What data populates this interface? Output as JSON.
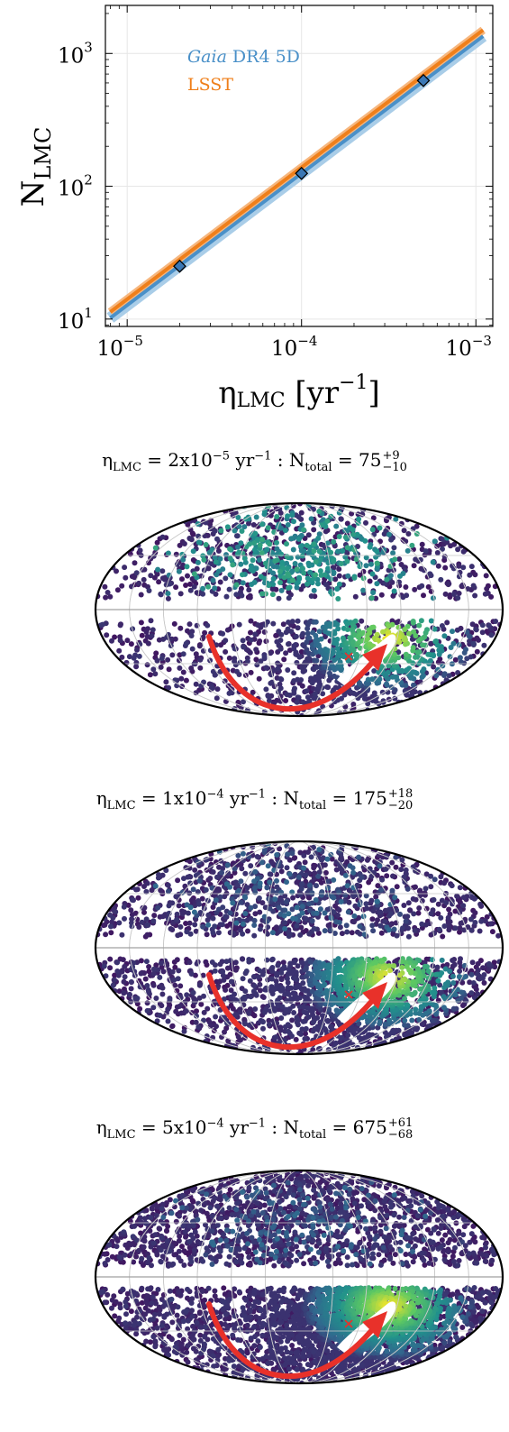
{
  "top_chart": {
    "chart_data": {
      "type": "line",
      "title": "",
      "xlabel": "η",
      "xlabel_sub": "LMC",
      "xlabel_unit": " [yr",
      "xlabel_unit_exp": "−1",
      "xlabel_close": "]",
      "ylabel": "N",
      "ylabel_sub": "LMC",
      "xscale": "log",
      "yscale": "log",
      "xlim": [
        7.5e-06,
        0.00125
      ],
      "ylim": [
        8.8,
        2300
      ],
      "grid": true,
      "legend_position": "top-left",
      "x_ticks": [
        {
          "value": 1e-05,
          "base": "10",
          "exp": "−5"
        },
        {
          "value": 0.0001,
          "base": "10",
          "exp": "−4"
        },
        {
          "value": 0.001,
          "base": "10",
          "exp": "−3"
        }
      ],
      "y_ticks": [
        {
          "value": 10,
          "base": "10",
          "exp": "1"
        },
        {
          "value": 100,
          "base": "10",
          "exp": "2"
        },
        {
          "value": 1000,
          "base": "10",
          "exp": "3"
        }
      ],
      "series": [
        {
          "name": "DR4 5D",
          "name_italic": "Gaia",
          "color": "#4a90c8",
          "band_color": "#a9cde8",
          "x": [
            8e-06,
            0.0011
          ],
          "y": [
            10.2,
            1350
          ]
        },
        {
          "name": "LSST",
          "color": "#ef7f1a",
          "x": [
            8e-06,
            0.0011
          ],
          "y": [
            11.3,
            1500
          ]
        }
      ],
      "markers": [
        {
          "x": 2e-05,
          "y": 25
        },
        {
          "x": 0.0001,
          "y": 125
        },
        {
          "x": 0.0005,
          "y": 625
        }
      ]
    }
  },
  "sky_maps": [
    {
      "eta_symbol": "η",
      "eta_sub": "LMC",
      "eta_value": " = 2x10",
      "eta_exp": "−5",
      "unit": " yr",
      "unit_exp": "−1",
      "sep": " : N",
      "n_sub": "total",
      "n_value": " = 75",
      "n_plus": "+9",
      "n_minus": "−10",
      "density": "low"
    },
    {
      "eta_symbol": "η",
      "eta_sub": "LMC",
      "eta_value": " = 1x10",
      "eta_exp": "−4",
      "unit": " yr",
      "unit_exp": "−1",
      "sep": " : N",
      "n_sub": "total",
      "n_value": " = 175",
      "n_plus": "+18",
      "n_minus": "−20",
      "density": "medium"
    },
    {
      "eta_symbol": "η",
      "eta_sub": "LMC",
      "eta_value": " = 5x10",
      "eta_exp": "−4",
      "unit": " yr",
      "unit_exp": "−1",
      "sep": " : N",
      "n_sub": "total",
      "n_value": " = 675",
      "n_plus": "+61",
      "n_minus": "−68",
      "density": "high"
    }
  ],
  "colors": {
    "point_dark": "#440154",
    "point_mid": "#31688e",
    "point_teal": "#21918c",
    "point_green": "#5ec962",
    "point_yellow": "#fde725",
    "arrow": "#e8312a",
    "marker_fill": "#3b78b5"
  }
}
